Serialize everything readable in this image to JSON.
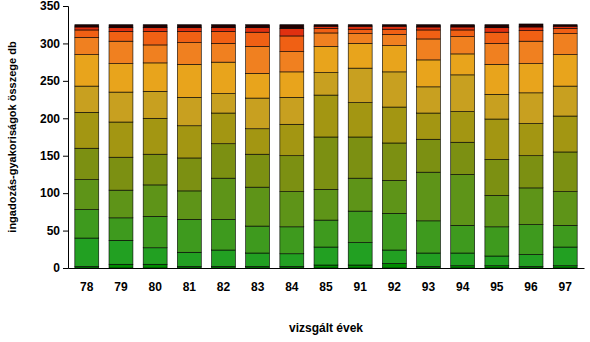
{
  "chart_data": {
    "type": "bar",
    "stacked": true,
    "x_label": "vizsgált évek",
    "y_label": "ingadozás-gyakoriságok összege db",
    "categories": [
      "78",
      "79",
      "80",
      "81",
      "82",
      "83",
      "84",
      "85",
      "91",
      "92",
      "93",
      "94",
      "95",
      "96",
      "97"
    ],
    "ylim": [
      0,
      350
    ],
    "yticks": [
      0,
      50,
      100,
      150,
      200,
      250,
      300,
      350
    ],
    "series": [
      {
        "color": "#008a00",
        "values": [
          2,
          5,
          5,
          2,
          2,
          2,
          2,
          4,
          4,
          6,
          2,
          3,
          3,
          2,
          3
        ]
      },
      {
        "color": "#22a022",
        "values": [
          38,
          32,
          22,
          19,
          22,
          18,
          17,
          24,
          30,
          18,
          18,
          17,
          13,
          16,
          25
        ]
      },
      {
        "color": "#3e9a1e",
        "values": [
          38,
          30,
          42,
          44,
          41,
          36,
          36,
          36,
          42,
          49,
          43,
          37,
          39,
          40,
          29
        ]
      },
      {
        "color": "#5e9418",
        "values": [
          40,
          37,
          42,
          38,
          55,
          52,
          47,
          41,
          44,
          44,
          65,
          68,
          42,
          49,
          45
        ]
      },
      {
        "color": "#7c9012",
        "values": [
          42,
          44,
          41,
          44,
          46,
          44,
          48,
          70,
          55,
          50,
          44,
          43,
          48,
          43,
          53
        ]
      },
      {
        "color": "#a39612",
        "values": [
          48,
          47,
          48,
          43,
          41,
          34,
          42,
          56,
          46,
          48,
          35,
          41,
          54,
          43,
          48
        ]
      },
      {
        "color": "#c8a020",
        "values": [
          35,
          40,
          36,
          38,
          26,
          41,
          36,
          30,
          46,
          47,
          35,
          49,
          33,
          41,
          40
        ]
      },
      {
        "color": "#e8a41c",
        "values": [
          42,
          38,
          38,
          44,
          42,
          33,
          34,
          35,
          33,
          35,
          36,
          28,
          40,
          39,
          42
        ]
      },
      {
        "color": "#f08020",
        "values": [
          23,
          30,
          24,
          29,
          25,
          36,
          27,
          18,
          13,
          15,
          28,
          23,
          28,
          30,
          28
        ]
      },
      {
        "color": "#f06014",
        "values": [
          10,
          13,
          18,
          15,
          16,
          19,
          21,
          6,
          6,
          7,
          12,
          9,
          15,
          14,
          7
        ]
      },
      {
        "color": "#e03010",
        "values": [
          4,
          5,
          5,
          5,
          5,
          6,
          10,
          3,
          4,
          4,
          4,
          4,
          6,
          5,
          3
        ]
      },
      {
        "color": "#200000",
        "values": [
          3,
          4,
          4,
          4,
          4,
          4,
          5,
          2,
          2,
          2,
          3,
          3,
          4,
          4,
          2
        ]
      }
    ]
  }
}
